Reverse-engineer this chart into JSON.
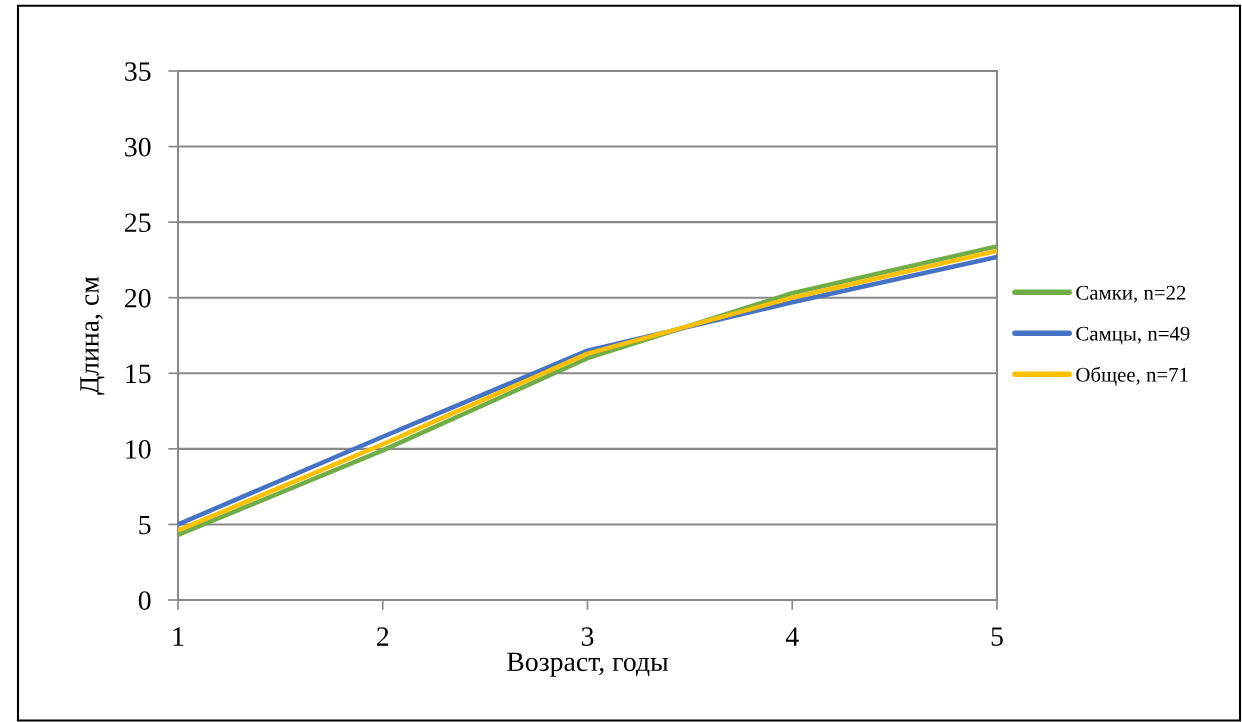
{
  "chart_data": {
    "type": "line",
    "xlabel": "Возраст, годы",
    "ylabel": "Длина, см",
    "x": [
      1,
      2,
      3,
      4,
      5
    ],
    "series": [
      {
        "name": "Самки, n=22",
        "color": "#70ad47",
        "values": [
          4.3,
          9.9,
          16.0,
          20.3,
          23.4
        ]
      },
      {
        "name": "Самцы, n=49",
        "color": "#4472c4",
        "values": [
          5.0,
          10.8,
          16.5,
          19.7,
          22.7
        ]
      },
      {
        "name": "Общее, n=71",
        "color": "#ffc000",
        "values": [
          4.6,
          10.3,
          16.3,
          20.0,
          23.1
        ]
      }
    ],
    "xlim": [
      1,
      5
    ],
    "xticks": [
      1,
      2,
      3,
      4,
      5
    ],
    "ylim": [
      0,
      35
    ],
    "yticks": [
      0,
      5,
      10,
      15,
      20,
      25,
      30,
      35
    ],
    "grid": "y",
    "legend": "right",
    "marker": "none",
    "line_style": "solid"
  }
}
